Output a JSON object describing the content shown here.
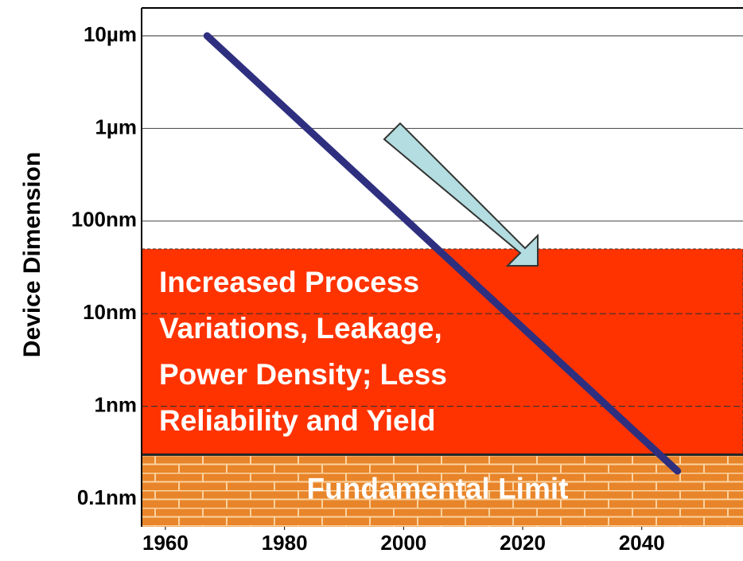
{
  "chart_data": {
    "type": "line",
    "y_label": "Device Dimension",
    "log_scale": true,
    "x": [
      1967,
      2046
    ],
    "series": [
      {
        "name": "Device Dimension",
        "color": "#2e2f7f",
        "values": [
          10000,
          0.2
        ]
      }
    ],
    "xlim": [
      1956,
      2057
    ],
    "xticks": [
      1960,
      1980,
      2000,
      2020,
      2040
    ],
    "ylim": [
      0.05,
      20000
    ],
    "yticks": [
      {
        "value": 0.1,
        "label": "0.1nm"
      },
      {
        "value": 1,
        "label": "1nm"
      },
      {
        "value": 10,
        "label": "10nm"
      },
      {
        "value": 100,
        "label": "100nm"
      },
      {
        "value": 1000,
        "label": "1µm"
      },
      {
        "value": 10000,
        "label": "10µm"
      }
    ],
    "variation_region": {
      "lines": [
        "Increased Process",
        "Variations, Leakage,",
        "Power Density; Less",
        "Reliability and Yield"
      ],
      "range": [
        0.3,
        50
      ],
      "color": "#ff3300"
    },
    "fundamental_limit": {
      "label": "Fundamental Limit",
      "value": 0.3,
      "color": "#e8852a"
    }
  }
}
